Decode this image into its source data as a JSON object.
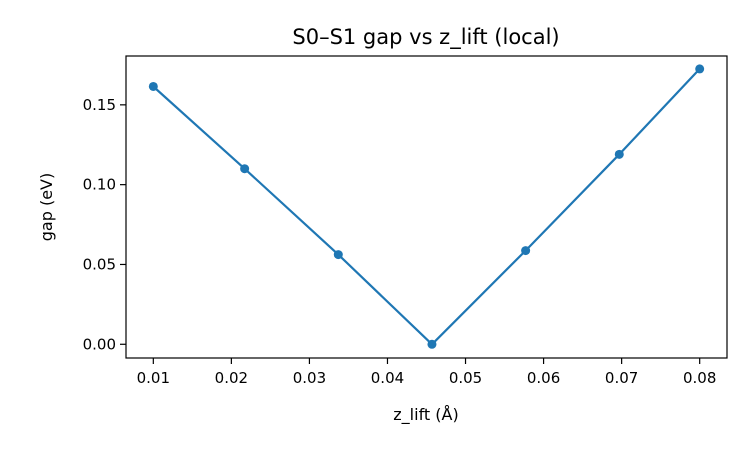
{
  "chart_data": {
    "type": "line",
    "title": "S0–S1 gap vs z_lift (local)",
    "xlabel": "z_lift (Å)",
    "ylabel": "gap (eV)",
    "xlim": [
      0.0065,
      0.0835
    ],
    "ylim": [
      -0.0086,
      0.1806
    ],
    "xticks": [
      0.01,
      0.02,
      0.03,
      0.04,
      0.05,
      0.06,
      0.07,
      0.08
    ],
    "xtick_labels": [
      "0.01",
      "0.02",
      "0.03",
      "0.04",
      "0.05",
      "0.06",
      "0.07",
      "0.08"
    ],
    "yticks": [
      0.0,
      0.05,
      0.1,
      0.15
    ],
    "ytick_labels": [
      "0.00",
      "0.05",
      "0.10",
      "0.15"
    ],
    "grid": false,
    "series": [
      {
        "color": "#1f77b4",
        "marker": "circle",
        "x": [
          0.01,
          0.0217,
          0.0337,
          0.0457,
          0.0577,
          0.0697,
          0.08
        ],
        "y": [
          0.1615,
          0.11,
          0.0562,
          0.0,
          0.0587,
          0.119,
          0.1725
        ]
      }
    ]
  }
}
